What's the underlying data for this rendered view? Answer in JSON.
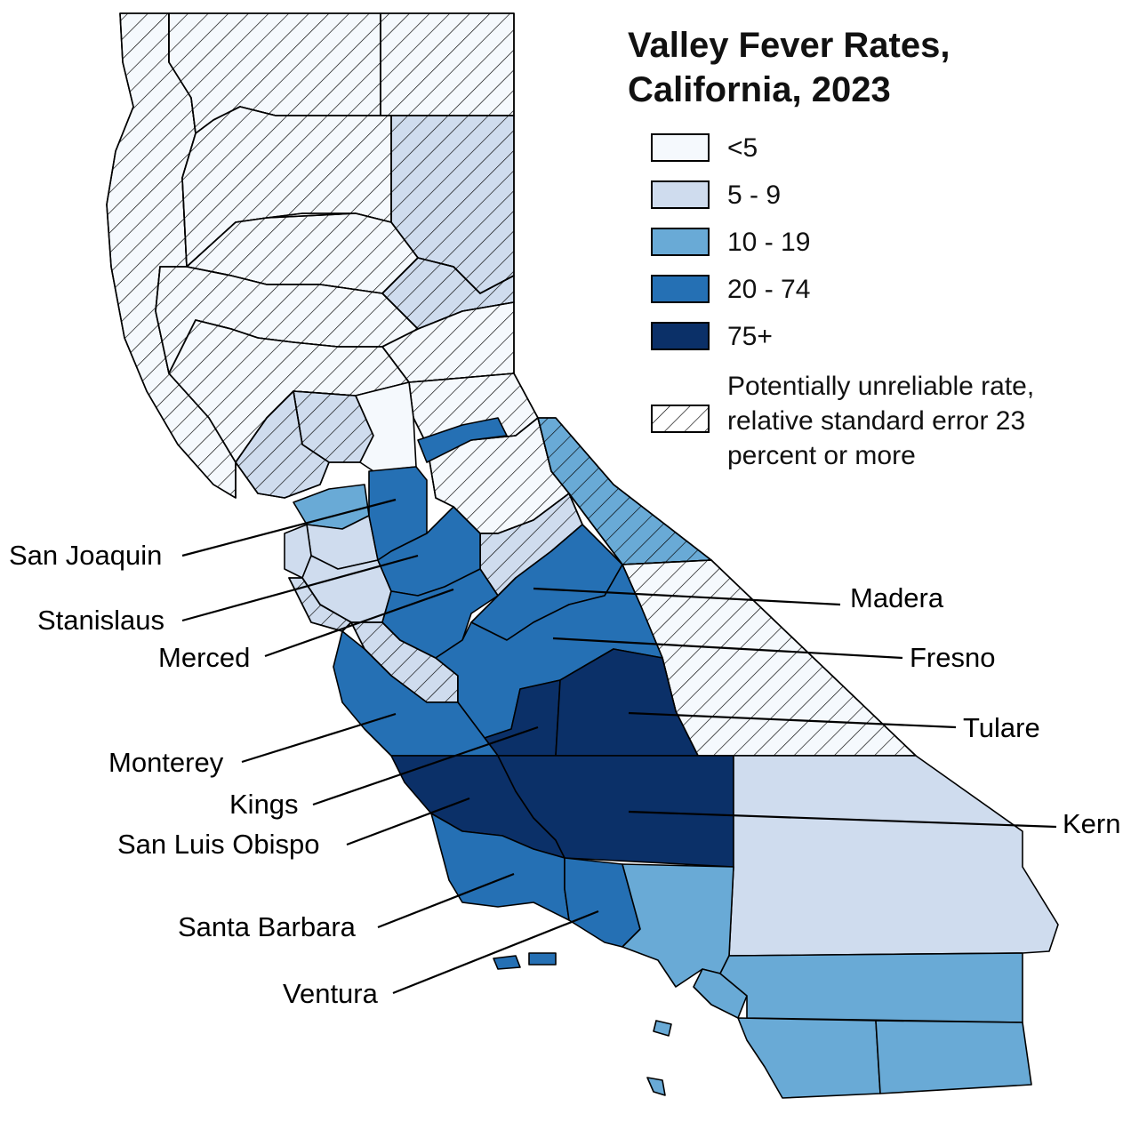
{
  "map": {
    "title_line1": "Valley Fever Rates,",
    "title_line2": "California, 2023",
    "legend": [
      {
        "label": "<5",
        "color": "#f5f9fd"
      },
      {
        "label": "5 - 9",
        "color": "#cfdcee"
      },
      {
        "label": "10 - 19",
        "color": "#69aad6"
      },
      {
        "label": "20 - 74",
        "color": "#2570b4"
      },
      {
        "label": "75+",
        "color": "#0b3068"
      }
    ],
    "hatch_note": "Potentially unreliable rate, relative standard error 23 percent or more",
    "county_labels": {
      "san_joaquin": "San Joaquin",
      "stanislaus": "Stanislaus",
      "merced": "Merced",
      "monterey": "Monterey",
      "kings": "Kings",
      "san_luis_obispo": "San Luis Obispo",
      "santa_barbara": "Santa Barbara",
      "ventura": "Ventura",
      "madera": "Madera",
      "fresno": "Fresno",
      "tulare": "Tulare",
      "kern": "Kern"
    }
  }
}
